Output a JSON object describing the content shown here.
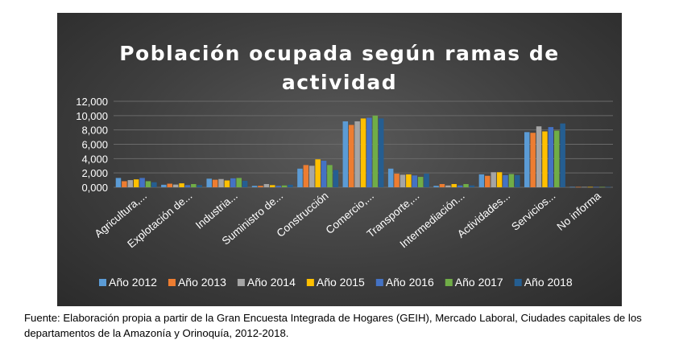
{
  "chart_data": {
    "type": "bar",
    "title_lines": [
      "Población ocupada según ramas de",
      "actividad"
    ],
    "categories": [
      "Agricultura,...",
      "Explotación de...",
      "Industria...",
      "Suministro de...",
      "Construcción",
      "Comercio,...",
      "Transporte,...",
      "Intermediación...",
      "Actividades...",
      "Servicios...",
      "No informa"
    ],
    "series": [
      {
        "name": "Año 2012",
        "color": "#5b9bd5",
        "values": [
          1300,
          350,
          1200,
          200,
          2600,
          9200,
          2600,
          200,
          1800,
          7700,
          50
        ]
      },
      {
        "name": "Año 2013",
        "color": "#ed7d31",
        "values": [
          850,
          500,
          1050,
          200,
          3100,
          8700,
          1900,
          450,
          1600,
          7600,
          50
        ]
      },
      {
        "name": "Año 2014",
        "color": "#a5a5a5",
        "values": [
          1000,
          380,
          1150,
          450,
          3000,
          9200,
          1750,
          250,
          2100,
          8500,
          50
        ]
      },
      {
        "name": "Año 2015",
        "color": "#ffc000",
        "values": [
          1100,
          550,
          950,
          300,
          3900,
          9600,
          1800,
          450,
          2100,
          7800,
          50
        ]
      },
      {
        "name": "Año 2016",
        "color": "#4472c4",
        "values": [
          1300,
          300,
          1250,
          200,
          3700,
          9700,
          1650,
          250,
          1700,
          8400,
          50
        ]
      },
      {
        "name": "Año 2017",
        "color": "#70ad47",
        "values": [
          850,
          450,
          1300,
          250,
          3100,
          10000,
          1450,
          450,
          1850,
          7900,
          50
        ]
      },
      {
        "name": "Año 2018",
        "color": "#255e91",
        "values": [
          700,
          300,
          900,
          350,
          2400,
          9600,
          1900,
          250,
          1700,
          8900,
          50
        ]
      }
    ],
    "yticks": [
      "0,000",
      "2,000",
      "4,000",
      "6,000",
      "8,000",
      "10,000",
      "12,000"
    ],
    "ylim": [
      0,
      12000
    ],
    "legend": "bottom",
    "grid": true
  },
  "source_note": "Fuente: Elaboración propia a partir de la Gran Encuesta Integrada de Hogares (GEIH), Mercado Laboral, Ciudades capitales de los departamentos de la Amazonía y Orinoquía, 2012-2018."
}
